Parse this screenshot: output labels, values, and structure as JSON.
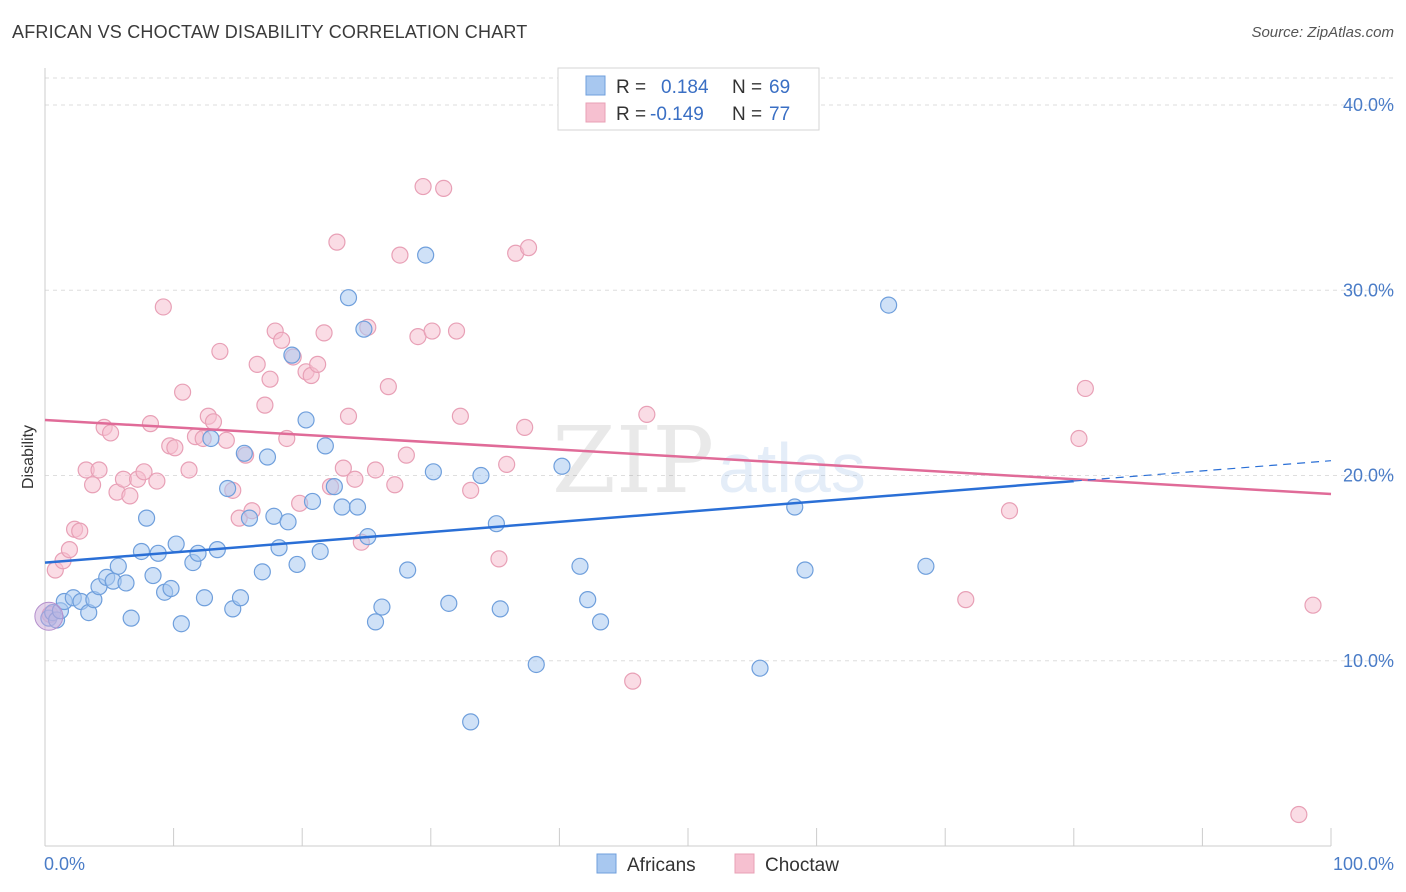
{
  "title": "AFRICAN VS CHOCTAW DISABILITY CORRELATION CHART",
  "source": "Source: ZipAtlas.com",
  "colors": {
    "africans_fill": "#a8c8f0",
    "africans_stroke": "#6f9fdc",
    "africans_line": "#2a6fd6",
    "choctaw_fill": "#f6c0d0",
    "choctaw_stroke": "#e8a0b6",
    "choctaw_line": "#e06b98",
    "tick_label": "#4a7cc7",
    "grid": "#dedede"
  },
  "legend": {
    "r_label": "R =",
    "n_label": "N =",
    "rows": [
      {
        "series": "Africans",
        "r": "0.184",
        "n": "69"
      },
      {
        "series": "Choctaw",
        "r": "-0.149",
        "n": "77"
      }
    ]
  },
  "watermark": {
    "zip": "ZIP",
    "atlas": "atlas"
  },
  "chart_data": {
    "type": "scatter",
    "title": "AFRICAN VS CHOCTAW DISABILITY CORRELATION CHART",
    "xlabel": "",
    "ylabel": "Disability",
    "xlim": [
      0,
      100
    ],
    "ylim": [
      0,
      42
    ],
    "x_tick_labels": [
      "0.0%",
      "100.0%"
    ],
    "y_ticks": [
      10,
      20,
      30,
      40
    ],
    "y_tick_labels": [
      "10.0%",
      "20.0%",
      "30.0%",
      "40.0%"
    ],
    "grid": true,
    "legend_position": "top-center",
    "series": [
      {
        "name": "Africans",
        "r": 0.184,
        "n": 69,
        "trend": {
          "x": [
            0,
            80
          ],
          "y": [
            15.3,
            19.7
          ],
          "dashed_extension": {
            "x": [
              80,
              100
            ],
            "y": [
              19.7,
              20.8
            ]
          }
        },
        "points": [
          [
            0.3,
            12.3
          ],
          [
            0.6,
            12.6
          ],
          [
            0.9,
            12.2
          ],
          [
            1.2,
            12.7
          ],
          [
            1.5,
            13.2
          ],
          [
            2.2,
            13.4
          ],
          [
            2.8,
            13.2
          ],
          [
            3.4,
            12.6
          ],
          [
            3.8,
            13.3
          ],
          [
            4.2,
            14.0
          ],
          [
            4.8,
            14.5
          ],
          [
            5.3,
            14.3
          ],
          [
            5.7,
            15.1
          ],
          [
            6.3,
            14.2
          ],
          [
            6.7,
            12.3
          ],
          [
            7.5,
            15.9
          ],
          [
            7.9,
            17.7
          ],
          [
            8.4,
            14.6
          ],
          [
            8.8,
            15.8
          ],
          [
            9.3,
            13.7
          ],
          [
            9.8,
            13.9
          ],
          [
            10.2,
            16.3
          ],
          [
            10.6,
            12.0
          ],
          [
            11.5,
            15.3
          ],
          [
            11.9,
            15.8
          ],
          [
            12.4,
            13.4
          ],
          [
            12.9,
            22.0
          ],
          [
            13.4,
            16.0
          ],
          [
            14.2,
            19.3
          ],
          [
            14.6,
            12.8
          ],
          [
            15.2,
            13.4
          ],
          [
            15.5,
            21.2
          ],
          [
            15.9,
            17.7
          ],
          [
            16.9,
            14.8
          ],
          [
            17.3,
            21.0
          ],
          [
            17.8,
            17.8
          ],
          [
            18.2,
            16.1
          ],
          [
            18.9,
            17.5
          ],
          [
            19.2,
            26.5
          ],
          [
            19.6,
            15.2
          ],
          [
            20.3,
            23.0
          ],
          [
            20.8,
            18.6
          ],
          [
            21.4,
            15.9
          ],
          [
            21.8,
            21.6
          ],
          [
            22.5,
            19.4
          ],
          [
            23.1,
            18.3
          ],
          [
            23.6,
            29.6
          ],
          [
            24.3,
            18.3
          ],
          [
            24.8,
            27.9
          ],
          [
            25.1,
            16.7
          ],
          [
            25.7,
            12.1
          ],
          [
            26.2,
            12.9
          ],
          [
            28.2,
            14.9
          ],
          [
            29.6,
            31.9
          ],
          [
            30.2,
            20.2
          ],
          [
            31.4,
            13.1
          ],
          [
            33.1,
            6.7
          ],
          [
            33.9,
            20.0
          ],
          [
            35.1,
            17.4
          ],
          [
            35.4,
            12.8
          ],
          [
            38.2,
            9.8
          ],
          [
            40.2,
            20.5
          ],
          [
            41.6,
            15.1
          ],
          [
            42.2,
            13.3
          ],
          [
            43.2,
            12.1
          ],
          [
            55.6,
            9.6
          ],
          [
            58.3,
            18.3
          ],
          [
            59.1,
            14.9
          ],
          [
            68.5,
            15.1
          ],
          [
            65.6,
            29.2
          ]
        ]
      },
      {
        "name": "Choctaw",
        "r": -0.149,
        "n": 77,
        "trend": {
          "x": [
            0,
            100
          ],
          "y": [
            23.0,
            19.0
          ]
        },
        "points": [
          [
            0.4,
            12.5
          ],
          [
            0.8,
            14.9
          ],
          [
            1.4,
            15.4
          ],
          [
            1.9,
            16.0
          ],
          [
            2.3,
            17.1
          ],
          [
            2.7,
            17.0
          ],
          [
            3.2,
            20.3
          ],
          [
            3.7,
            19.5
          ],
          [
            4.2,
            20.3
          ],
          [
            4.6,
            22.6
          ],
          [
            5.1,
            22.3
          ],
          [
            5.6,
            19.1
          ],
          [
            6.1,
            19.8
          ],
          [
            6.6,
            18.9
          ],
          [
            7.2,
            19.8
          ],
          [
            7.7,
            20.2
          ],
          [
            8.2,
            22.8
          ],
          [
            8.7,
            19.7
          ],
          [
            9.2,
            29.1
          ],
          [
            9.7,
            21.6
          ],
          [
            10.1,
            21.5
          ],
          [
            10.7,
            24.5
          ],
          [
            11.2,
            20.3
          ],
          [
            11.7,
            22.1
          ],
          [
            12.3,
            22.0
          ],
          [
            12.7,
            23.2
          ],
          [
            13.1,
            22.9
          ],
          [
            13.6,
            26.7
          ],
          [
            14.1,
            21.9
          ],
          [
            14.6,
            19.2
          ],
          [
            15.1,
            17.7
          ],
          [
            15.6,
            21.1
          ],
          [
            16.1,
            18.1
          ],
          [
            16.5,
            26.0
          ],
          [
            17.1,
            23.8
          ],
          [
            17.5,
            25.2
          ],
          [
            17.9,
            27.8
          ],
          [
            18.4,
            27.3
          ],
          [
            18.8,
            22.0
          ],
          [
            19.3,
            26.4
          ],
          [
            19.8,
            18.5
          ],
          [
            20.3,
            25.6
          ],
          [
            20.7,
            25.4
          ],
          [
            21.2,
            26.0
          ],
          [
            21.7,
            27.7
          ],
          [
            22.2,
            19.4
          ],
          [
            22.7,
            32.6
          ],
          [
            23.2,
            20.4
          ],
          [
            23.6,
            23.2
          ],
          [
            24.1,
            19.8
          ],
          [
            24.6,
            16.4
          ],
          [
            25.1,
            28.0
          ],
          [
            25.7,
            20.3
          ],
          [
            26.7,
            24.8
          ],
          [
            27.2,
            19.5
          ],
          [
            27.6,
            31.9
          ],
          [
            28.1,
            21.1
          ],
          [
            29.0,
            27.5
          ],
          [
            29.4,
            35.6
          ],
          [
            30.1,
            27.8
          ],
          [
            31.0,
            35.5
          ],
          [
            32.0,
            27.8
          ],
          [
            32.3,
            23.2
          ],
          [
            33.1,
            19.2
          ],
          [
            35.3,
            15.5
          ],
          [
            35.9,
            20.6
          ],
          [
            36.6,
            32.0
          ],
          [
            37.3,
            22.6
          ],
          [
            37.6,
            32.3
          ],
          [
            45.7,
            8.9
          ],
          [
            46.8,
            23.3
          ],
          [
            71.6,
            13.3
          ],
          [
            75.0,
            18.1
          ],
          [
            80.4,
            22.0
          ],
          [
            80.9,
            24.7
          ],
          [
            98.6,
            13.0
          ],
          [
            97.5,
            1.7
          ]
        ]
      }
    ]
  }
}
